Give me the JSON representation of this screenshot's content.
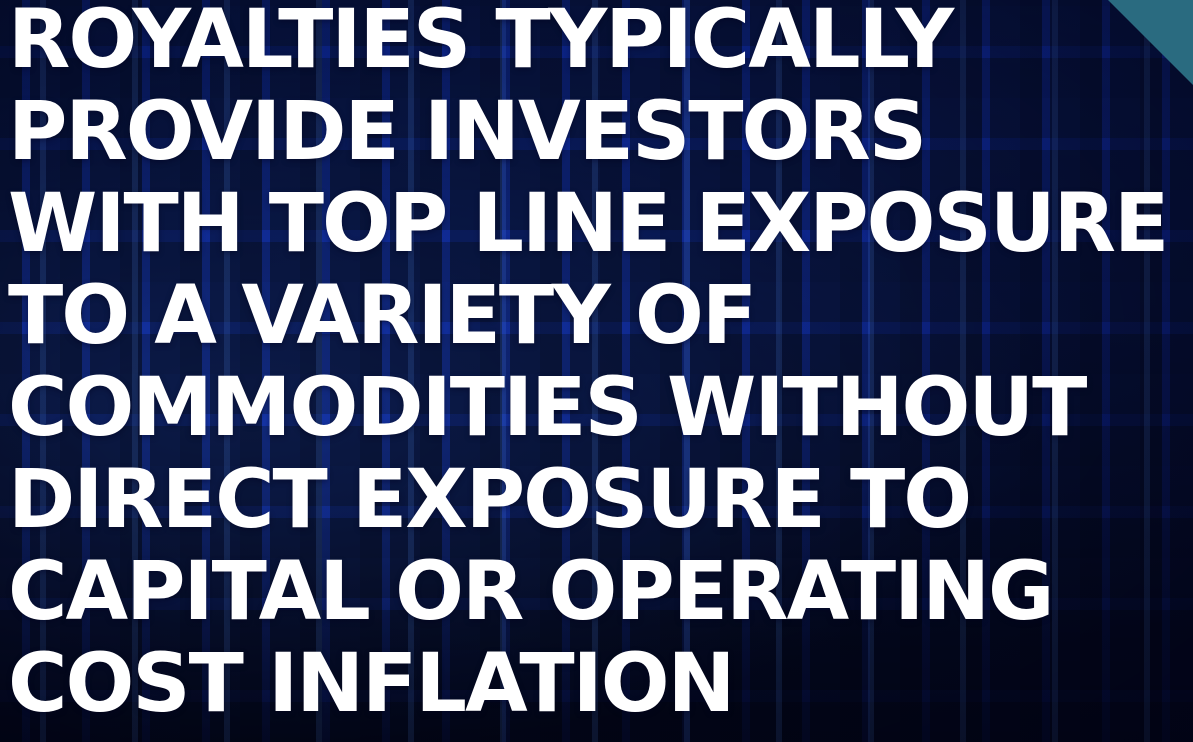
{
  "headline": {
    "lines": [
      "ROYALTIES TYPICALLY",
      "PROVIDE INVESTORS",
      "WITH TOP LINE EXPOSURE",
      "TO A VARIETY OF",
      "COMMODITIES WITHOUT",
      "DIRECT EXPOSURE TO",
      "CAPITAL OR OPERATING",
      "COST INFLATION"
    ]
  },
  "colors": {
    "text": "#ffffff",
    "background_blue": "#0d2a8a",
    "corner_accent": "#2a6b80"
  }
}
